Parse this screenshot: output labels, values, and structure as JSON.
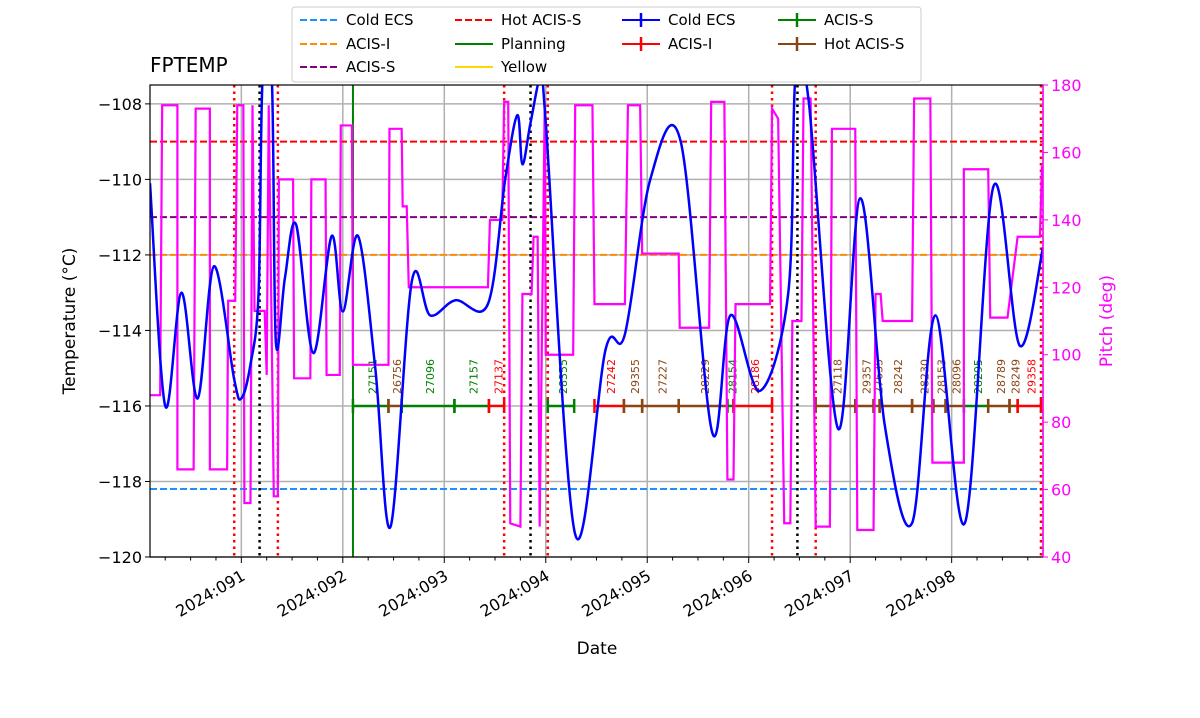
{
  "chart_data": {
    "type": "line",
    "title": "FPTEMP",
    "xlabel": "Date",
    "ylabel": "Temperature ($^\\circ$C)",
    "ylabel_display": "Temperature (°C)",
    "y2label": "Pitch (deg)",
    "xlim": [
      90.1,
      98.9
    ],
    "ylim": [
      -120,
      -107.5
    ],
    "y2lim": [
      40,
      180
    ],
    "grid": true,
    "x_ticks": [
      {
        "doy": 91,
        "label": "2024:091"
      },
      {
        "doy": 92,
        "label": "2024:092"
      },
      {
        "doy": 93,
        "label": "2024:093"
      },
      {
        "doy": 94,
        "label": "2024:094"
      },
      {
        "doy": 95,
        "label": "2024:095"
      },
      {
        "doy": 96,
        "label": "2024:096"
      },
      {
        "doy": 97,
        "label": "2024:097"
      },
      {
        "doy": 98,
        "label": "2024:098"
      }
    ],
    "y_ticks": [
      "-108",
      "-110",
      "-112",
      "-114",
      "-116",
      "-118",
      "-120"
    ],
    "y2_ticks": [
      "40",
      "60",
      "80",
      "100",
      "120",
      "140",
      "160",
      "180"
    ],
    "legend_position": "top-center",
    "legend": [
      {
        "label": "Cold ECS",
        "color": "#1e90ff",
        "style": "dashed"
      },
      {
        "label": "ACIS-I",
        "color": "#ff8c00",
        "style": "dashed"
      },
      {
        "label": "ACIS-S",
        "color": "#800080",
        "style": "dashed"
      },
      {
        "label": "Hot ACIS-S",
        "color": "#ff0000",
        "style": "dashed"
      },
      {
        "label": "Planning",
        "color": "#008000",
        "style": "solid"
      },
      {
        "label": "Yellow",
        "color": "#ffd700",
        "style": "solid"
      },
      {
        "label": "Cold ECS",
        "color": "#0000ff",
        "style": "marker"
      },
      {
        "label": "ACIS-I",
        "color": "#ff0000",
        "style": "marker"
      },
      {
        "label": "ACIS-S",
        "color": "#008000",
        "style": "marker"
      },
      {
        "label": "Hot ACIS-S",
        "color": "#8b4513",
        "style": "marker"
      }
    ],
    "limit_lines": [
      {
        "name": "Cold ECS",
        "value": -118.2,
        "color": "#1e90ff"
      },
      {
        "name": "ACIS-I",
        "value": -112.0,
        "color": "#ff8c00"
      },
      {
        "name": "ACIS-S",
        "value": -111.0,
        "color": "#800080"
      },
      {
        "name": "Hot ACIS-S",
        "value": -109.0,
        "color": "#ff0000"
      }
    ],
    "planning_line_doy": 92.1,
    "red_dotted_doy": [
      90.93,
      91.36,
      93.59,
      94.02,
      96.23,
      96.66,
      98.88
    ],
    "black_dotted_doy": [
      91.18,
      93.85,
      96.48
    ],
    "fptemp": [
      [
        90.1,
        -110.1
      ],
      [
        90.25,
        -116
      ],
      [
        90.41,
        -113
      ],
      [
        90.57,
        -115.8
      ],
      [
        90.73,
        -112.3
      ],
      [
        90.93,
        -115.3
      ],
      [
        91.0,
        -115.8
      ],
      [
        91.09,
        -114.9
      ],
      [
        91.17,
        -113
      ],
      [
        91.21,
        -107.3
      ],
      [
        91.3,
        -107.3
      ],
      [
        91.34,
        -114.3
      ],
      [
        91.43,
        -112.6
      ],
      [
        91.54,
        -111.2
      ],
      [
        91.71,
        -114.6
      ],
      [
        91.89,
        -111.5
      ],
      [
        92.0,
        -113.5
      ],
      [
        92.15,
        -111.5
      ],
      [
        92.32,
        -115
      ],
      [
        92.47,
        -119.2
      ],
      [
        92.68,
        -112.7
      ],
      [
        92.86,
        -113.6
      ],
      [
        93.11,
        -113.2
      ],
      [
        93.43,
        -113.3
      ],
      [
        93.6,
        -110
      ],
      [
        93.72,
        -108.3
      ],
      [
        93.77,
        -109.6
      ],
      [
        93.85,
        -108.5
      ],
      [
        93.95,
        -107.3
      ],
      [
        94.0,
        -108.5
      ],
      [
        94.29,
        -119.4
      ],
      [
        94.59,
        -114.5
      ],
      [
        94.78,
        -114.1
      ],
      [
        95.03,
        -110
      ],
      [
        95.33,
        -109
      ],
      [
        95.64,
        -116.7
      ],
      [
        95.82,
        -113.6
      ],
      [
        96.11,
        -115.6
      ],
      [
        96.39,
        -113
      ],
      [
        96.46,
        -107.3
      ],
      [
        96.59,
        -107.9
      ],
      [
        96.88,
        -116.6
      ],
      [
        97.1,
        -110.5
      ],
      [
        97.34,
        -116.5
      ],
      [
        97.61,
        -119.1
      ],
      [
        97.84,
        -113.6
      ],
      [
        98.13,
        -119.1
      ],
      [
        98.41,
        -110.2
      ],
      [
        98.67,
        -114.4
      ],
      [
        98.9,
        -111.8
      ]
    ],
    "pitch": [
      [
        90.1,
        88
      ],
      [
        90.2,
        88
      ],
      [
        90.22,
        174
      ],
      [
        90.37,
        174
      ],
      [
        90.37,
        66
      ],
      [
        90.53,
        66
      ],
      [
        90.55,
        173
      ],
      [
        90.69,
        173
      ],
      [
        90.69,
        66
      ],
      [
        90.86,
        66
      ],
      [
        90.87,
        116
      ],
      [
        90.94,
        116
      ],
      [
        90.96,
        174
      ],
      [
        91.02,
        174
      ],
      [
        91.03,
        56
      ],
      [
        91.09,
        56
      ],
      [
        91.11,
        174
      ],
      [
        91.13,
        113
      ],
      [
        91.23,
        113
      ],
      [
        91.25,
        94
      ],
      [
        91.27,
        174
      ],
      [
        91.32,
        58
      ],
      [
        91.36,
        58
      ],
      [
        91.37,
        152
      ],
      [
        91.51,
        152
      ],
      [
        91.52,
        93
      ],
      [
        91.68,
        93
      ],
      [
        91.69,
        152
      ],
      [
        91.83,
        152
      ],
      [
        91.84,
        94
      ],
      [
        91.97,
        94
      ],
      [
        91.98,
        168
      ],
      [
        92.09,
        168
      ],
      [
        92.1,
        97
      ],
      [
        92.45,
        97
      ],
      [
        92.46,
        167
      ],
      [
        92.58,
        167
      ],
      [
        92.59,
        144
      ],
      [
        92.63,
        144
      ],
      [
        92.65,
        120
      ],
      [
        92.96,
        120
      ],
      [
        93.11,
        120
      ],
      [
        93.43,
        120
      ],
      [
        93.45,
        140
      ],
      [
        93.57,
        140
      ],
      [
        93.59,
        175
      ],
      [
        93.63,
        175
      ],
      [
        93.65,
        50
      ],
      [
        93.75,
        49
      ],
      [
        93.77,
        118
      ],
      [
        93.86,
        118
      ],
      [
        93.88,
        135
      ],
      [
        93.92,
        135
      ],
      [
        93.94,
        49
      ],
      [
        93.99,
        175
      ],
      [
        94.0,
        100
      ],
      [
        94.27,
        100
      ],
      [
        94.29,
        174
      ],
      [
        94.46,
        174
      ],
      [
        94.48,
        115
      ],
      [
        94.78,
        115
      ],
      [
        94.81,
        174
      ],
      [
        94.93,
        174
      ],
      [
        94.95,
        130
      ],
      [
        95.31,
        130
      ],
      [
        95.32,
        108
      ],
      [
        95.61,
        108
      ],
      [
        95.63,
        175
      ],
      [
        95.76,
        175
      ],
      [
        95.79,
        63
      ],
      [
        95.85,
        63
      ],
      [
        95.87,
        115
      ],
      [
        96.21,
        115
      ],
      [
        96.23,
        173
      ],
      [
        96.29,
        170
      ],
      [
        96.35,
        50
      ],
      [
        96.41,
        50
      ],
      [
        96.43,
        110
      ],
      [
        96.52,
        110
      ],
      [
        96.54,
        176
      ],
      [
        96.61,
        176
      ],
      [
        96.66,
        49
      ],
      [
        96.8,
        49
      ],
      [
        96.82,
        167
      ],
      [
        97.05,
        167
      ],
      [
        97.07,
        48
      ],
      [
        97.23,
        48
      ],
      [
        97.25,
        118
      ],
      [
        97.3,
        118
      ],
      [
        97.32,
        110
      ],
      [
        97.61,
        110
      ],
      [
        97.63,
        176
      ],
      [
        97.79,
        176
      ],
      [
        97.81,
        68
      ],
      [
        97.94,
        68
      ],
      [
        98.12,
        68
      ],
      [
        98.12,
        155
      ],
      [
        98.36,
        155
      ],
      [
        98.38,
        111
      ],
      [
        98.55,
        111
      ],
      [
        98.65,
        135
      ],
      [
        98.87,
        135
      ],
      [
        98.89,
        156
      ]
    ],
    "obsids": [
      {
        "obsid": "27151",
        "inst": "ACIS-S",
        "start": 92.1,
        "stop": 92.45
      },
      {
        "obsid": "26756",
        "inst": "Hot ACIS-S",
        "start": 92.45,
        "stop": 92.58
      },
      {
        "obsid": "27096",
        "inst": "ACIS-S",
        "start": 92.58,
        "stop": 93.1
      },
      {
        "obsid": "27157",
        "inst": "ACIS-S",
        "start": 93.1,
        "stop": 93.44
      },
      {
        "obsid": "27137",
        "inst": "ACIS-I",
        "start": 93.44,
        "stop": 93.59
      },
      {
        "obsid": "28355",
        "inst": "ACIS-S",
        "start": 94.02,
        "stop": 94.28
      },
      {
        "obsid": "27242",
        "inst": "ACIS-I",
        "start": 94.48,
        "stop": 94.77
      },
      {
        "obsid": "29355",
        "inst": "Hot ACIS-S",
        "start": 94.77,
        "stop": 94.95
      },
      {
        "obsid": "27227",
        "inst": "Hot ACIS-S",
        "start": 94.95,
        "stop": 95.31
      },
      {
        "obsid": "28229",
        "inst": "Hot ACIS-S",
        "start": 95.31,
        "stop": 95.79
      },
      {
        "obsid": "28154",
        "inst": "ACIS-S",
        "start": 95.79,
        "stop": 95.85
      },
      {
        "obsid": "28186",
        "inst": "ACIS-I",
        "start": 95.85,
        "stop": 96.23
      },
      {
        "obsid": "27118",
        "inst": "Hot ACIS-S",
        "start": 96.66,
        "stop": 97.05
      },
      {
        "obsid": "29357",
        "inst": "Hot ACIS-S",
        "start": 97.05,
        "stop": 97.23
      },
      {
        "obsid": "27635",
        "inst": "Hot ACIS-S",
        "start": 97.23,
        "stop": 97.29
      },
      {
        "obsid": "28242",
        "inst": "Hot ACIS-S",
        "start": 97.29,
        "stop": 97.61
      },
      {
        "obsid": "28230",
        "inst": "Hot ACIS-S",
        "start": 97.61,
        "stop": 97.82
      },
      {
        "obsid": "28153",
        "inst": "Hot ACIS-S",
        "start": 97.82,
        "stop": 97.94
      },
      {
        "obsid": "28096",
        "inst": "Hot ACIS-S",
        "start": 97.94,
        "stop": 98.12
      },
      {
        "obsid": "28295",
        "inst": "ACIS-S",
        "start": 98.12,
        "stop": 98.36
      },
      {
        "obsid": "28789",
        "inst": "Hot ACIS-S",
        "start": 98.36,
        "stop": 98.57
      },
      {
        "obsid": "28249",
        "inst": "Hot ACIS-S",
        "start": 98.57,
        "stop": 98.65
      },
      {
        "obsid": "29358",
        "inst": "ACIS-I",
        "start": 98.65,
        "stop": 98.88
      }
    ],
    "obsid_bar_level": -116,
    "colors": {
      "fptemp": "#0000ff",
      "pitch": "#ff00ff",
      "ACIS-S": "#008000",
      "ACIS-I": "#ff0000",
      "Hot ACIS-S": "#8b4513",
      "grid": "#b0b0b0"
    }
  }
}
